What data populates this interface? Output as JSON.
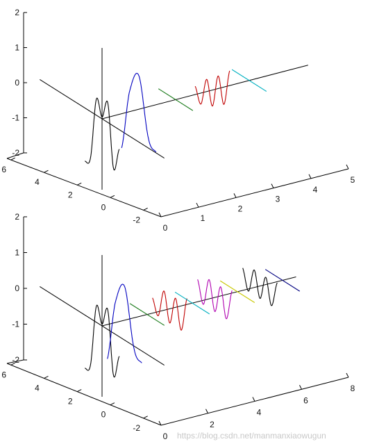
{
  "chart_data": [
    {
      "type": "line",
      "view": "3d",
      "title": "",
      "xlabel": "",
      "ylabel": "",
      "zlabel": "",
      "grid": false,
      "xlim": [
        -2,
        6
      ],
      "ylim": [
        0,
        5
      ],
      "zlim": [
        -2,
        2
      ],
      "x_ticks": [
        "6",
        "4",
        "2",
        "0",
        "-2"
      ],
      "y_ticks": [
        "0",
        "1",
        "2",
        "3",
        "4",
        "5"
      ],
      "z_ticks": [
        "2",
        "1",
        "0",
        "-1",
        "-2"
      ],
      "series": [
        {
          "color": "#000000",
          "role": "base",
          "y": 0,
          "x": [
            -1.8,
            -1.2,
            -0.6,
            0.0,
            0.6,
            1.2,
            1.8
          ],
          "z": [
            -0.55,
            -1.2,
            0.55,
            0.05,
            0.45,
            -1.3,
            -1.5
          ]
        },
        {
          "color": "#0000c0",
          "role": "wave",
          "y": 1,
          "x": [
            -1.8,
            -1.0,
            0.0,
            1.0,
            1.8
          ],
          "z": [
            -0.9,
            -0.65,
            0.95,
            0.3,
            -1.4
          ]
        },
        {
          "color": "#1a7a1a",
          "role": "constant",
          "y": 2,
          "x": [
            -1.8,
            1.8
          ],
          "z": [
            0.0,
            0.0
          ]
        },
        {
          "color": "#c00000",
          "role": "wave",
          "y": 3,
          "x": [
            -1.8,
            -1.2,
            -0.6,
            0.0,
            0.6,
            1.2,
            1.8
          ],
          "z": [
            0.85,
            -0.2,
            0.5,
            -0.45,
            0.2,
            -0.6,
            -0.2
          ]
        },
        {
          "color": "#00b0c0",
          "role": "constant",
          "y": 4,
          "x": [
            -1.8,
            1.8
          ],
          "z": [
            0.0,
            0.0
          ]
        }
      ]
    },
    {
      "type": "line",
      "view": "3d",
      "title": "",
      "xlabel": "",
      "ylabel": "",
      "zlabel": "",
      "grid": false,
      "xlim": [
        -2,
        6
      ],
      "ylim": [
        0,
        8
      ],
      "zlim": [
        -2,
        2
      ],
      "x_ticks": [
        "6",
        "4",
        "2",
        "0",
        "-2"
      ],
      "y_ticks": [
        "0",
        "2",
        "4",
        "6",
        "8"
      ],
      "z_ticks": [
        "2",
        "1",
        "0",
        "-1",
        "-2"
      ],
      "series": [
        {
          "color": "#000000",
          "role": "base",
          "y": 0,
          "x": [
            -1.8,
            -1.2,
            -0.6,
            0.0,
            0.6,
            1.2,
            1.8
          ],
          "z": [
            -0.55,
            -1.2,
            0.55,
            0.05,
            0.45,
            -1.3,
            -1.5
          ]
        },
        {
          "color": "#0000c0",
          "role": "wave",
          "y": 1,
          "x": [
            -1.8,
            -1.0,
            0.0,
            1.0,
            1.8
          ],
          "z": [
            -0.9,
            -0.65,
            0.95,
            0.3,
            -1.4
          ]
        },
        {
          "color": "#1a7a1a",
          "role": "constant",
          "y": 2,
          "x": [
            -1.8,
            1.8
          ],
          "z": [
            0.0,
            0.0
          ]
        },
        {
          "color": "#c00000",
          "role": "wave",
          "y": 3,
          "x": [
            -1.8,
            -1.2,
            -0.6,
            0.0,
            0.6,
            1.2,
            1.8
          ],
          "z": [
            0.6,
            -0.4,
            0.4,
            -0.4,
            0.4,
            -0.4,
            0.0
          ]
        },
        {
          "color": "#00b0c0",
          "role": "constant",
          "y": 4,
          "x": [
            -1.8,
            1.8
          ],
          "z": [
            0.0,
            0.0
          ]
        },
        {
          "color": "#b000b0",
          "role": "wave",
          "y": 5,
          "x": [
            -1.8,
            -1.2,
            -0.6,
            0.0,
            0.6,
            1.2,
            1.8
          ],
          "z": [
            0.5,
            -0.4,
            0.4,
            -0.4,
            0.4,
            -0.4,
            0.2
          ]
        },
        {
          "color": "#c8c800",
          "role": "constant",
          "y": 6,
          "x": [
            -1.8,
            1.8
          ],
          "z": [
            0.0,
            0.0
          ]
        },
        {
          "color": "#000000",
          "role": "wave",
          "y": 7,
          "x": [
            -1.8,
            -1.2,
            -0.6,
            0.0,
            0.6,
            1.2,
            1.8
          ],
          "z": [
            0.4,
            -0.35,
            0.35,
            -0.35,
            0.35,
            -0.35,
            0.2
          ]
        },
        {
          "color": "#000080",
          "role": "constant",
          "y": 8,
          "x": [
            -1.8,
            1.8
          ],
          "z": [
            0.0,
            0.0
          ]
        }
      ]
    }
  ],
  "watermark": "https://blog.csdn.net/manmanxiaowugun"
}
